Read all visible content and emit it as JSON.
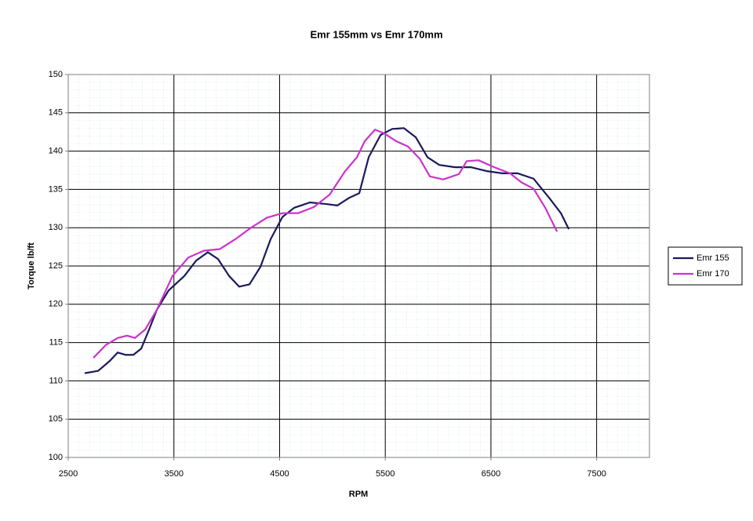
{
  "chart_data": {
    "type": "line",
    "title": "Emr 155mm vs Emr 170mm",
    "x_label": "RPM",
    "y_label": "Torque lb/ft",
    "xlim": [
      2500,
      8000
    ],
    "xticks": [
      2500,
      3500,
      4500,
      5500,
      6500,
      7500
    ],
    "ylim": [
      100,
      150
    ],
    "yticks": [
      100,
      105,
      110,
      115,
      120,
      125,
      130,
      135,
      140,
      145,
      150
    ],
    "grid": true,
    "legend": "right",
    "series": [
      {
        "name": "Emr 155",
        "color": "#1a1a5e",
        "x": [
          2656,
          2782,
          2893,
          2968,
          3042,
          3116,
          3190,
          3265,
          3339,
          3450,
          3599,
          3710,
          3821,
          3918,
          4022,
          4118,
          4215,
          4319,
          4415,
          4527,
          4638,
          4787,
          4935,
          5046,
          5158,
          5254,
          5343,
          5455,
          5566,
          5677,
          5789,
          5900,
          6011,
          6160,
          6309,
          6457,
          6606,
          6754,
          6903,
          7051,
          7162,
          7237
        ],
        "values": [
          111.0,
          111.3,
          112.6,
          113.7,
          113.4,
          113.4,
          114.2,
          116.7,
          119.3,
          121.8,
          123.7,
          125.7,
          126.8,
          125.9,
          123.7,
          122.3,
          122.6,
          124.9,
          128.5,
          131.4,
          132.6,
          133.3,
          133.1,
          132.9,
          133.9,
          134.5,
          139.2,
          142.1,
          142.9,
          143.0,
          141.8,
          139.2,
          138.2,
          137.9,
          137.9,
          137.4,
          137.1,
          137.1,
          136.4,
          133.9,
          131.9,
          129.8
        ]
      },
      {
        "name": "Emr 170",
        "color": "#cc33cc",
        "x": [
          2738,
          2857,
          2968,
          3057,
          3131,
          3228,
          3339,
          3487,
          3636,
          3784,
          3933,
          4081,
          4230,
          4378,
          4527,
          4675,
          4824,
          4972,
          5121,
          5232,
          5306,
          5403,
          5492,
          5603,
          5715,
          5826,
          5922,
          6049,
          6197,
          6271,
          6383,
          6531,
          6680,
          6791,
          6903,
          7014,
          7125
        ],
        "values": [
          113.0,
          114.7,
          115.6,
          115.9,
          115.6,
          116.7,
          119.3,
          123.7,
          126.1,
          127.0,
          127.2,
          128.5,
          130.0,
          131.3,
          131.9,
          131.9,
          132.7,
          134.3,
          137.4,
          139.2,
          141.3,
          142.8,
          142.3,
          141.3,
          140.6,
          139.0,
          136.7,
          136.3,
          137.0,
          138.7,
          138.8,
          137.9,
          137.1,
          135.9,
          135.1,
          132.6,
          129.5
        ]
      }
    ]
  }
}
